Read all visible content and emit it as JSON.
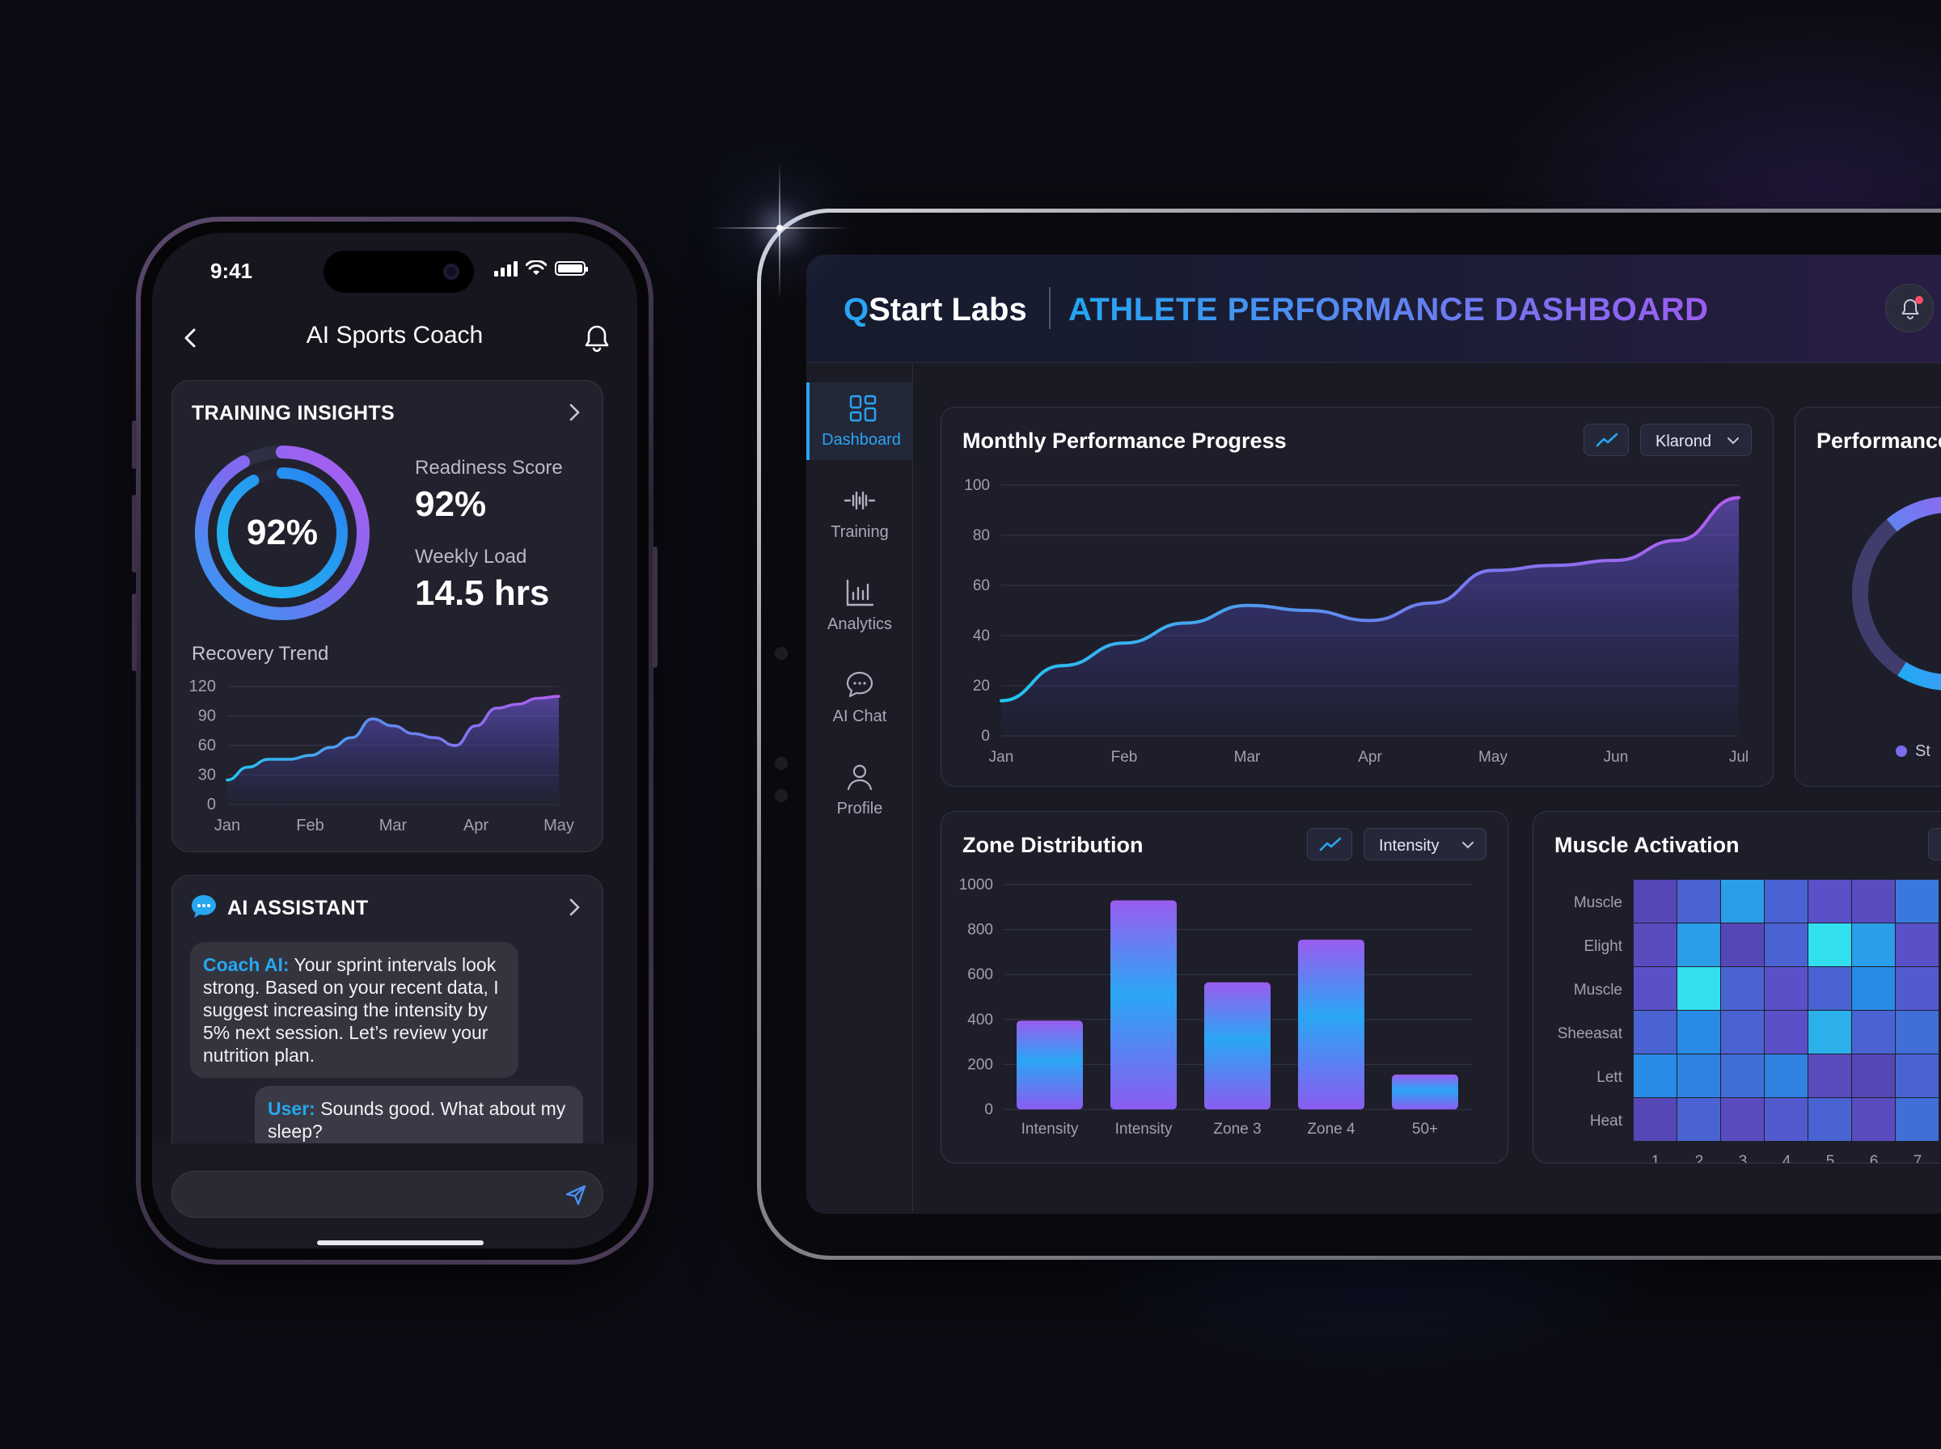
{
  "phone": {
    "status": {
      "time": "9:41"
    },
    "nav": {
      "title": "AI Sports Coach"
    },
    "training": {
      "title": "TRAINING INSIGHTS",
      "ring_value": "92%",
      "ring_fraction": 0.92,
      "readiness_label": "Readiness Score",
      "readiness_value": "92%",
      "load_label": "Weekly Load",
      "load_value": "14.5 hrs",
      "trend_label": "Recovery Trend"
    },
    "assistant": {
      "title": "AI ASSISTANT",
      "coach_speaker": "Coach AI:",
      "coach_message": "Your sprint intervals look strong. Based on your recent data, I suggest increasing the intensity by 5% next session. Let’s review your nutrition plan.",
      "user_speaker": "User:",
      "user_message": "Sounds good. What about my sleep?"
    },
    "input": {
      "placeholder": ""
    }
  },
  "tablet": {
    "brand": "QStart Labs",
    "brand_first": "Q",
    "brand_rest": "Start Labs",
    "title": "ATHLETE PERFORMANCE DASHBOARD",
    "sidebar": {
      "items": [
        {
          "label": "Dashboard",
          "icon": "grid-icon",
          "active": true
        },
        {
          "label": "Training",
          "icon": "waveform-icon",
          "active": false
        },
        {
          "label": "Analytics",
          "icon": "bar-chart-icon",
          "active": false
        },
        {
          "label": "AI Chat",
          "icon": "chat-bubble-icon",
          "active": false
        },
        {
          "label": "Profile",
          "icon": "user-icon",
          "active": false
        }
      ]
    },
    "monthly": {
      "title": "Monthly Performance Progress",
      "dropdown": "Klarond"
    },
    "performance": {
      "title": "Performance",
      "legend_partial": "St"
    },
    "zone": {
      "title": "Zone Distribution",
      "dropdown": "Intensity"
    },
    "muscle": {
      "title": "Muscle Activation"
    }
  },
  "colors": {
    "accent_blue": "#2aa4f4",
    "accent_purple": "#9d5cf0",
    "panel_bg": "#1e1e2a",
    "page_bg": "#0c0d14"
  },
  "chart_data": [
    {
      "id": "recovery-trend",
      "type": "area",
      "title": "Recovery Trend",
      "x_ticks": [
        "Jan",
        "Feb",
        "Mar",
        "Apr",
        "May"
      ],
      "x": [
        0,
        0.25,
        0.5,
        0.75,
        1.0,
        1.25,
        1.5,
        1.75,
        2.0,
        2.25,
        2.5,
        2.75,
        3.0,
        3.25,
        3.5,
        3.75,
        4.0
      ],
      "y": [
        25,
        38,
        46,
        46,
        50,
        58,
        68,
        87,
        80,
        72,
        68,
        60,
        80,
        98,
        102,
        108,
        110
      ],
      "ylim": [
        0,
        120
      ],
      "y_ticks": [
        0,
        30,
        60,
        90,
        120
      ],
      "grid": true
    },
    {
      "id": "monthly-performance",
      "type": "area",
      "title": "Monthly Performance Progress",
      "x_ticks": [
        "Jan",
        "Feb",
        "Mar",
        "Apr",
        "May",
        "Jun",
        "Jul"
      ],
      "x": [
        0,
        0.5,
        1.0,
        1.5,
        2.0,
        2.5,
        3.0,
        3.5,
        4.0,
        4.5,
        5.0,
        5.5,
        6.0
      ],
      "y": [
        14,
        28,
        37,
        45,
        52,
        50,
        46,
        53,
        66,
        68,
        70,
        78,
        95
      ],
      "ylim": [
        0,
        100
      ],
      "y_ticks": [
        0,
        20,
        40,
        60,
        80,
        100
      ],
      "grid": true
    },
    {
      "id": "zone-distribution",
      "type": "bar",
      "title": "Zone Distribution",
      "categories": [
        "Intensity",
        "Intensity",
        "Zone 3",
        "Zone 4",
        "50+"
      ],
      "values": [
        395,
        930,
        565,
        755,
        155
      ],
      "ylim": [
        0,
        1000
      ],
      "y_ticks": [
        0,
        200,
        400,
        600,
        800,
        1000
      ],
      "grid": true
    },
    {
      "id": "muscle-activation",
      "type": "heatmap",
      "title": "Muscle Activation",
      "rows": [
        "Muscle",
        "Elight",
        "Muscle",
        "Sheeasat",
        "Lett",
        "Heat"
      ],
      "cols": [
        "1",
        "2",
        "3",
        "4",
        "5",
        "6",
        "7"
      ],
      "values": [
        [
          0.35,
          0.55,
          0.8,
          0.55,
          0.45,
          0.4,
          0.65
        ],
        [
          0.4,
          0.8,
          0.35,
          0.55,
          0.98,
          0.8,
          0.45
        ],
        [
          0.45,
          0.98,
          0.55,
          0.45,
          0.55,
          0.75,
          0.5
        ],
        [
          0.55,
          0.75,
          0.55,
          0.45,
          0.85,
          0.55,
          0.6
        ],
        [
          0.75,
          0.7,
          0.6,
          0.7,
          0.4,
          0.35,
          0.55
        ],
        [
          0.35,
          0.55,
          0.4,
          0.5,
          0.55,
          0.4,
          0.6
        ]
      ]
    },
    {
      "id": "performance-ring",
      "type": "pie",
      "title": "Performance",
      "values": [
        0.7,
        0.3
      ]
    }
  ]
}
